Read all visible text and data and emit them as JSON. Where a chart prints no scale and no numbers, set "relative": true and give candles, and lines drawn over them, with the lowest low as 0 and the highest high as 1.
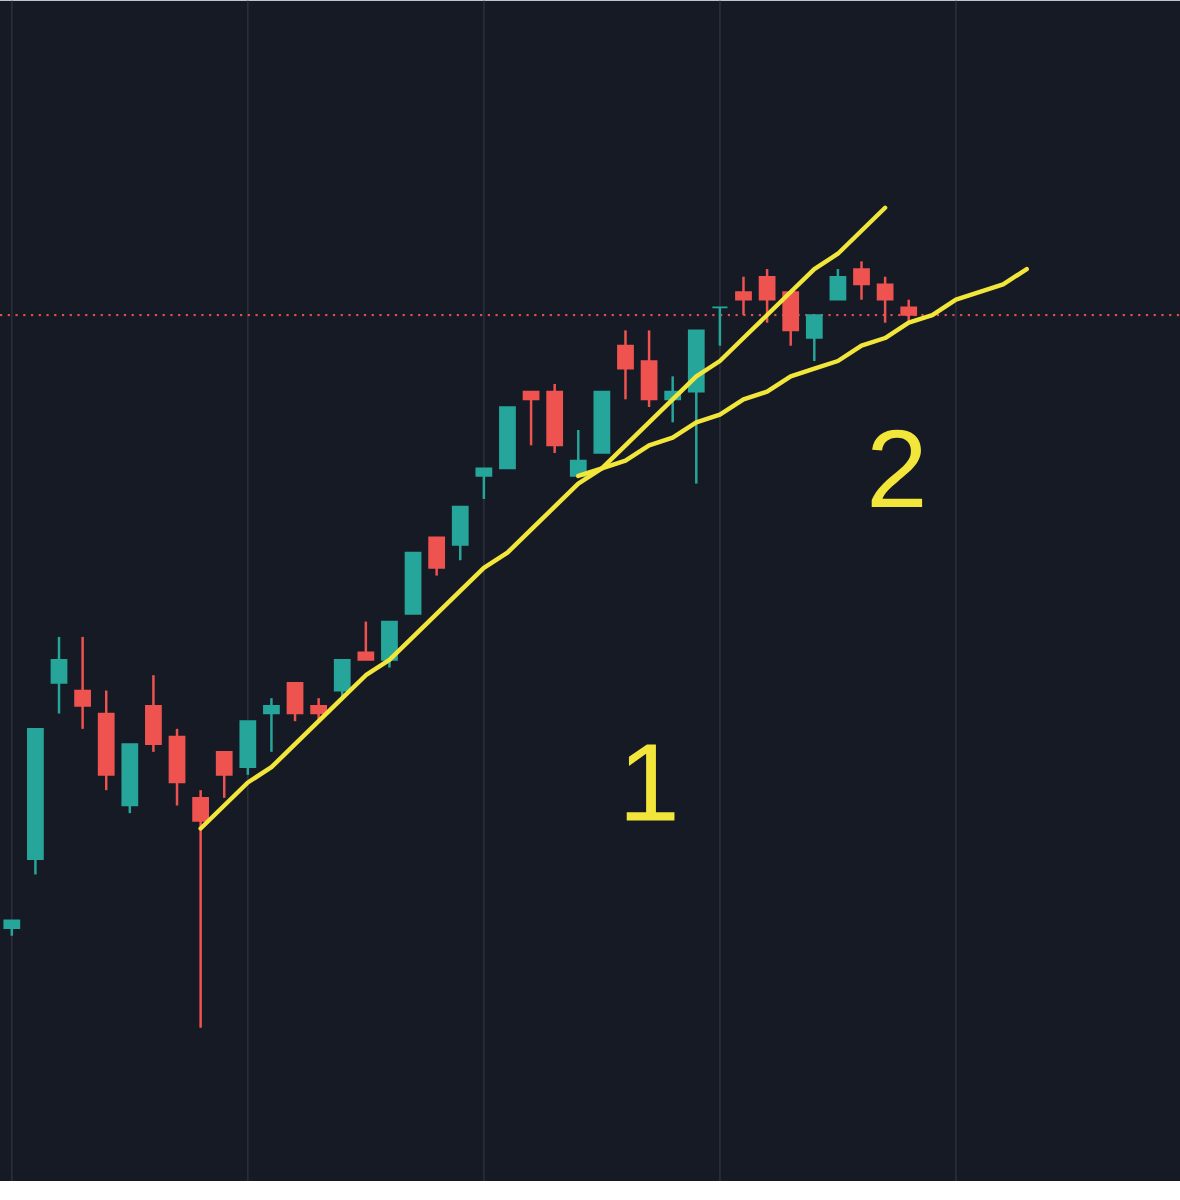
{
  "chart_data": {
    "type": "candlestick",
    "relative": true,
    "grid": true,
    "tick_labels": false,
    "categories": [
      null,
      null,
      null,
      null,
      null,
      null,
      null,
      null,
      null,
      null,
      null,
      null,
      null,
      null,
      null,
      null,
      null,
      null,
      null,
      null,
      null,
      null,
      null,
      null,
      null,
      null,
      null,
      null,
      null,
      null,
      null,
      null,
      null,
      null,
      null,
      null,
      null,
      null,
      null,
      null,
      null,
      null,
      null,
      null,
      null,
      null,
      null,
      null,
      null,
      null
    ],
    "ohlc": [
      [
        0.13,
        0.14,
        0.12,
        0.14
      ],
      [
        0.22,
        0.39,
        0.2,
        0.39
      ],
      [
        0.45,
        0.51,
        0.41,
        0.48
      ],
      [
        0.44,
        0.51,
        0.39,
        0.42
      ],
      [
        0.41,
        0.44,
        0.31,
        0.33
      ],
      [
        0.29,
        0.37,
        0.28,
        0.37
      ],
      [
        0.42,
        0.46,
        0.36,
        0.37
      ],
      [
        0.38,
        0.39,
        0.29,
        0.32
      ],
      [
        0.3,
        0.31,
        0,
        0.27
      ],
      [
        0.36,
        0.36,
        0.3,
        0.33
      ],
      [
        0.34,
        0.4,
        0.33,
        0.4
      ],
      [
        0.41,
        0.43,
        0.36,
        0.42
      ],
      [
        0.45,
        0.45,
        0.4,
        0.41
      ],
      [
        0.42,
        0.43,
        0.4,
        0.41
      ],
      [
        0.44,
        0.48,
        0.43,
        0.48
      ],
      [
        0.49,
        0.53,
        0.48,
        0.48
      ],
      [
        0.48,
        0.53,
        0.47,
        0.53
      ],
      [
        0.54,
        0.62,
        0.54,
        0.62
      ],
      [
        0.64,
        0.64,
        0.59,
        0.6
      ],
      [
        0.63,
        0.68,
        0.61,
        0.68
      ],
      [
        0.72,
        0.73,
        0.69,
        0.73
      ],
      [
        0.73,
        0.81,
        0.73,
        0.81
      ],
      [
        0.83,
        0.83,
        0.76,
        0.82
      ],
      [
        0.83,
        0.84,
        0.75,
        0.76
      ],
      [
        0.72,
        0.78,
        0.72,
        0.74
      ],
      [
        0.75,
        0.83,
        0.75,
        0.83
      ],
      [
        0.89,
        0.91,
        0.82,
        0.86
      ],
      [
        0.87,
        0.91,
        0.81,
        0.82
      ],
      [
        0.82,
        0.85,
        0.79,
        0.83
      ],
      [
        0.83,
        0.91,
        0.71,
        0.91
      ],
      [
        0.94,
        0.94,
        0.89,
        0.94
      ],
      [
        0.96,
        0.98,
        0.93,
        0.95
      ],
      [
        0.98,
        0.99,
        0.92,
        0.95
      ],
      [
        0.96,
        0.96,
        0.89,
        0.91
      ],
      [
        0.9,
        0.93,
        0.87,
        0.93
      ],
      [
        0.95,
        0.99,
        0.95,
        0.98
      ],
      [
        0.99,
        1,
        0.95,
        0.97
      ],
      [
        0.97,
        0.98,
        0.92,
        0.95
      ],
      [
        0.94,
        0.95,
        0.92,
        0.93
      ],
      null,
      null,
      null,
      null,
      null,
      null,
      null,
      null,
      null,
      null,
      null
    ],
    "colors": [
      "#26a69a",
      "#26a69a",
      "#26a69a",
      "#ef5350",
      "#ef5350",
      "#26a69a",
      "#ef5350",
      "#ef5350",
      "#ef5350",
      "#ef5350",
      "#26a69a",
      "#26a69a",
      "#ef5350",
      "#ef5350",
      "#26a69a",
      "#ef5350",
      "#26a69a",
      "#26a69a",
      "#ef5350",
      "#26a69a",
      "#26a69a",
      "#26a69a",
      "#ef5350",
      "#ef5350",
      "#26a69a",
      "#26a69a",
      "#ef5350",
      "#ef5350",
      "#26a69a",
      "#26a69a",
      "#26a69a",
      "#ef5350",
      "#ef5350",
      "#ef5350",
      "#26a69a",
      "#26a69a",
      "#ef5350",
      "#ef5350",
      "#ef5350",
      null,
      null,
      null,
      null,
      null,
      null,
      null,
      null,
      null,
      null,
      null
    ],
    "ref_lines": [
      {
        "axis": "y",
        "value": 0.93,
        "color": "#e05050",
        "line_style": "dotted"
      }
    ],
    "series": [
      {
        "type": "line",
        "color": "#f2e63a",
        "values": [
          null,
          null,
          null,
          null,
          null,
          null,
          null,
          null,
          0.26,
          0.29,
          0.32,
          0.34,
          0.37,
          0.4,
          0.43,
          0.46,
          0.48,
          0.51,
          0.54,
          0.57,
          0.6,
          0.62,
          0.65,
          0.68,
          0.71,
          0.73,
          0.76,
          0.79,
          0.82,
          0.85,
          0.87,
          0.9,
          0.93,
          0.96,
          0.99,
          1.01,
          1.04,
          1.07,
          null,
          null,
          null,
          null,
          null,
          null,
          null,
          null,
          null,
          null,
          null,
          null
        ]
      },
      {
        "type": "line",
        "color": "#f2e63a",
        "values": [
          null,
          null,
          null,
          null,
          null,
          null,
          null,
          null,
          null,
          null,
          null,
          null,
          null,
          null,
          null,
          null,
          null,
          null,
          null,
          null,
          null,
          null,
          null,
          null,
          0.72,
          0.73,
          0.74,
          0.76,
          0.77,
          0.79,
          0.8,
          0.82,
          0.83,
          0.85,
          0.86,
          0.87,
          0.89,
          0.9,
          0.92,
          0.93,
          0.95,
          0.96,
          0.97,
          0.99,
          null,
          null,
          null,
          null,
          null,
          null
        ]
      }
    ],
    "annotations": [
      "1",
      "2"
    ]
  }
}
